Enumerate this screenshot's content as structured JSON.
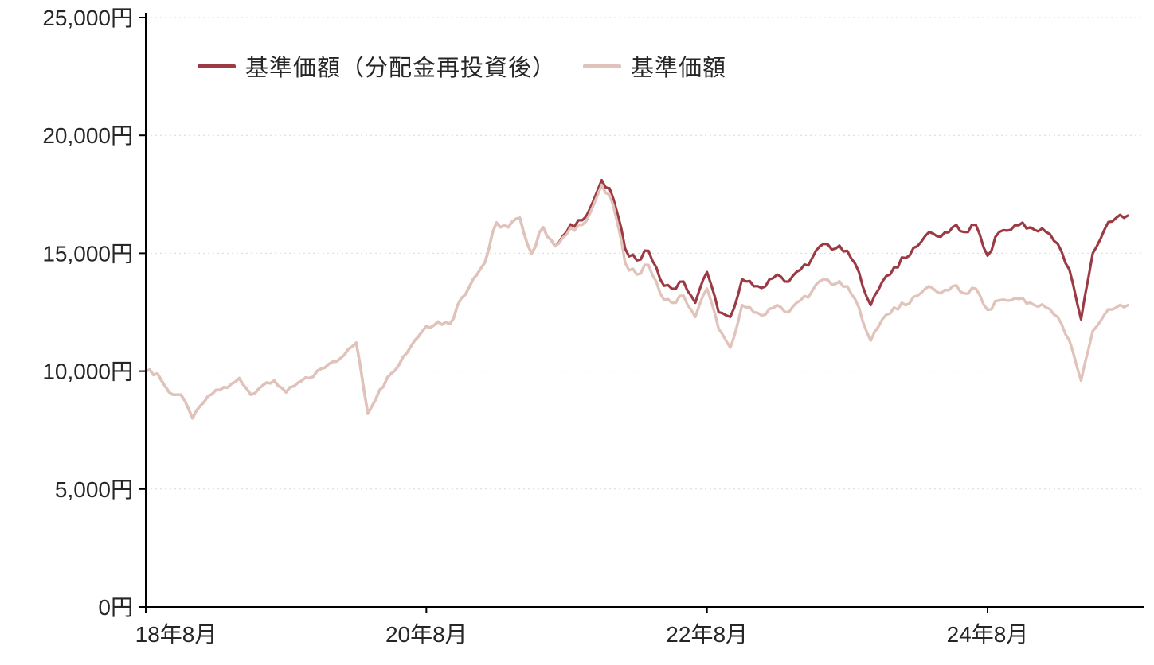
{
  "chart_data": {
    "type": "line",
    "title": "",
    "x_start": "2018-08",
    "x_unit": "month",
    "x_axis": {
      "tick_labels": [
        "18年8月",
        "20年8月",
        "22年8月",
        "24年8月"
      ],
      "tick_month_indices": [
        0,
        24,
        48,
        72
      ]
    },
    "y_axis": {
      "tick_values": [
        0,
        5000,
        10000,
        15000,
        20000,
        25000
      ],
      "tick_labels": [
        "0円",
        "5,000円",
        "10,000円",
        "15,000円",
        "20,000円",
        "25,000円"
      ]
    },
    "ylim": [
      0,
      25000
    ],
    "grid": "horizontal-dotted",
    "legend_position": "top-inside",
    "series": [
      {
        "name": "基準価額（分配金再投資後）",
        "color": "#9b3a43",
        "values": [
          10000,
          9900,
          9100,
          9000,
          8000,
          8700,
          9200,
          9300,
          9700,
          9000,
          9400,
          9600,
          9100,
          9500,
          9700,
          10100,
          10400,
          10700,
          11200,
          8200,
          9200,
          9900,
          10600,
          11300,
          11900,
          12100,
          12000,
          13100,
          13900,
          14600,
          16300,
          16100,
          16500,
          15000,
          16100,
          15300,
          15900,
          16400,
          16900,
          18100,
          17300,
          15200,
          14700,
          15100,
          13900,
          13500,
          13800,
          12900,
          14200,
          12500,
          12300,
          13900,
          13600,
          13600,
          14100,
          13800,
          14300,
          14800,
          15400,
          15200,
          15100,
          14200,
          12800,
          13800,
          14400,
          14800,
          15300,
          15900,
          15700,
          16100,
          15900,
          16200,
          14900,
          15900,
          16000,
          16300,
          16000,
          15900,
          15400,
          14300,
          12200,
          15000,
          16000,
          16500,
          16600
        ]
      },
      {
        "name": "基準価額",
        "color": "#e0c3ba",
        "values": [
          10000,
          9900,
          9100,
          9000,
          8000,
          8700,
          9200,
          9300,
          9700,
          9000,
          9400,
          9600,
          9100,
          9500,
          9700,
          10100,
          10400,
          10700,
          11200,
          8200,
          9200,
          9900,
          10600,
          11300,
          11900,
          12100,
          12000,
          13100,
          13900,
          14600,
          16300,
          16100,
          16500,
          15000,
          16100,
          15300,
          15800,
          16200,
          16700,
          17900,
          17000,
          14600,
          14100,
          14500,
          13300,
          12900,
          13200,
          12300,
          13500,
          11800,
          11000,
          12800,
          12500,
          12400,
          12800,
          12500,
          13000,
          13400,
          13900,
          13700,
          13600,
          12700,
          11300,
          12200,
          12700,
          12800,
          13200,
          13600,
          13300,
          13600,
          13300,
          13500,
          12600,
          13000,
          13000,
          13100,
          12800,
          12700,
          12300,
          11300,
          9600,
          11700,
          12400,
          12700,
          12800
        ]
      }
    ],
    "colors": {
      "axis": "#000000",
      "grid": "#d9d9d9",
      "tick_text": "#262626"
    }
  }
}
